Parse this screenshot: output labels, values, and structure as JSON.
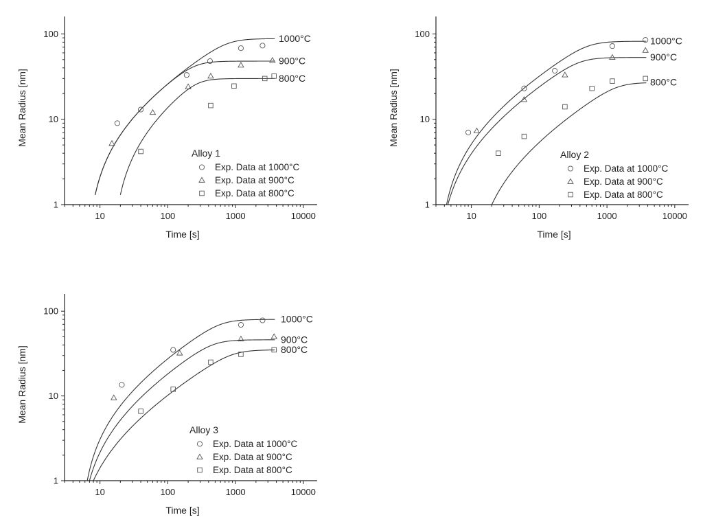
{
  "chart_data": [
    {
      "type": "line",
      "title": "",
      "xlabel": "Time [s]",
      "ylabel": "Mean Radius [nm]",
      "xscale": "log",
      "yscale": "log",
      "xlim": [
        3,
        16000
      ],
      "ylim": [
        1,
        160
      ],
      "xticks": [
        10,
        100,
        1000,
        10000
      ],
      "xtick_labels": [
        "10",
        "100",
        "1000",
        "10000"
      ],
      "yticks": [
        1,
        10,
        100
      ],
      "ytick_labels": [
        "1",
        "10",
        "100"
      ],
      "legend": {
        "title": "Alloy 1",
        "entries": [
          {
            "marker": "circle",
            "label": "Exp. Data at 1000°C"
          },
          {
            "marker": "triangle",
            "label": "Exp. Data at 900°C"
          },
          {
            "marker": "square",
            "label": "Exp. Data at 800°C"
          }
        ]
      },
      "series": [
        {
          "name": "1000°C",
          "marker": "circle",
          "curve": {
            "t0": 8.5,
            "t_inflect": 1.3,
            "a": 10,
            "b": 3.2,
            "tsat": 1600,
            "rsat": 88
          },
          "points": [
            [
              18,
              9
            ],
            [
              40,
              13
            ],
            [
              190,
              33
            ],
            [
              420,
              48
            ],
            [
              1200,
              68
            ],
            [
              2500,
              73
            ]
          ]
        },
        {
          "name": "900°C",
          "marker": "triangle",
          "curve": {
            "t0": 8.5,
            "t_inflect": 1.3,
            "a": 10,
            "b": 3.2,
            "tsat": 1600,
            "rsat": 48
          },
          "points": [
            [
              15,
              5.2
            ],
            [
              60,
              12
            ],
            [
              200,
              24
            ],
            [
              430,
              32
            ],
            [
              1200,
              43
            ],
            [
              3500,
              49
            ]
          ]
        },
        {
          "name": "800°C",
          "marker": "square",
          "curve": {
            "t0": 20,
            "t_inflect": 1.3,
            "a": 10,
            "b": 3.2,
            "tsat": 1600,
            "rsat": 30
          },
          "points": [
            [
              40,
              4.2
            ],
            [
              430,
              14.5
            ],
            [
              950,
              24.5
            ],
            [
              2700,
              30
            ],
            [
              3700,
              32
            ]
          ]
        }
      ]
    },
    {
      "type": "line",
      "title": "",
      "xlabel": "Time [s]",
      "ylabel": "Mean Radius [nm]",
      "xscale": "log",
      "yscale": "log",
      "xlim": [
        3,
        16000
      ],
      "ylim": [
        1,
        160
      ],
      "xticks": [
        10,
        100,
        1000,
        10000
      ],
      "xtick_labels": [
        "10",
        "100",
        "1000",
        "10000"
      ],
      "yticks": [
        1,
        10,
        100
      ],
      "ytick_labels": [
        "1",
        "10",
        "100"
      ],
      "legend": {
        "title": "Alloy 2",
        "entries": [
          {
            "marker": "circle",
            "label": "Exp. Data at 1000°C"
          },
          {
            "marker": "triangle",
            "label": "Exp. Data at 900°C"
          },
          {
            "marker": "square",
            "label": "Exp. Data at 800°C"
          }
        ]
      },
      "series": [
        {
          "name": "1000°C",
          "marker": "circle",
          "curve": {
            "t0": 4.3,
            "t_inflect": 1.0,
            "a": 8,
            "b": 3.2,
            "tsat": 900,
            "rsat": 82
          },
          "points": [
            [
              9,
              7
            ],
            [
              60,
              23
            ],
            [
              170,
              37
            ],
            [
              1200,
              72
            ],
            [
              3700,
              85
            ]
          ]
        },
        {
          "name": "900°C",
          "marker": "triangle",
          "curve": {
            "t0": 4.5,
            "t_inflect": 1.0,
            "a": 6,
            "b": 3.2,
            "tsat": 900,
            "rsat": 53
          },
          "points": [
            [
              12,
              7.3
            ],
            [
              60,
              17
            ],
            [
              240,
              33
            ],
            [
              1200,
              53
            ],
            [
              3700,
              64
            ]
          ]
        },
        {
          "name": "800°C",
          "marker": "square",
          "curve": {
            "t0": 20,
            "t_inflect": 1.0,
            "a": 3.2,
            "b": 3.2,
            "tsat": 900,
            "rsat": 27
          },
          "points": [
            [
              25,
              4
            ],
            [
              60,
              6.3
            ],
            [
              240,
              14
            ],
            [
              600,
              23
            ],
            [
              1200,
              28
            ],
            [
              3700,
              30
            ]
          ]
        }
      ]
    },
    {
      "type": "line",
      "title": "",
      "xlabel": "Time [s]",
      "ylabel": "Mean Radius [nm]",
      "xscale": "log",
      "yscale": "log",
      "xlim": [
        3,
        16000
      ],
      "ylim": [
        1,
        160
      ],
      "xticks": [
        10,
        100,
        1000,
        10000
      ],
      "xtick_labels": [
        "10",
        "100",
        "1000",
        "10000"
      ],
      "yticks": [
        1,
        10,
        100
      ],
      "ytick_labels": [
        "1",
        "10",
        "100"
      ],
      "legend": {
        "title": "Alloy 3",
        "entries": [
          {
            "marker": "circle",
            "label": "Exp. Data at 1000°C"
          },
          {
            "marker": "triangle",
            "label": "Exp. Data at 900°C"
          },
          {
            "marker": "square",
            "label": "Exp. Data at 800°C"
          }
        ]
      },
      "series": [
        {
          "name": "1000°C",
          "marker": "circle",
          "curve": {
            "t0": 6.5,
            "t_inflect": 1.0,
            "a": 9,
            "b": 3.2,
            "tsat": 900,
            "rsat": 80
          },
          "points": [
            [
              21,
              13.5
            ],
            [
              120,
              35
            ],
            [
              1200,
              69
            ],
            [
              2500,
              78
            ]
          ]
        },
        {
          "name": "900°C",
          "marker": "triangle",
          "curve": {
            "t0": 7.0,
            "t_inflect": 1.0,
            "a": 6,
            "b": 3.2,
            "tsat": 900,
            "rsat": 46
          },
          "points": [
            [
              16,
              9.5
            ],
            [
              150,
              32
            ],
            [
              1200,
              47
            ],
            [
              3700,
              50
            ]
          ]
        },
        {
          "name": "800°C",
          "marker": "square",
          "curve": {
            "t0": 8.0,
            "t_inflect": 1.0,
            "a": 3.3,
            "b": 3.2,
            "tsat": 900,
            "rsat": 35
          },
          "points": [
            [
              40,
              6.6
            ],
            [
              120,
              12
            ],
            [
              430,
              25
            ],
            [
              1200,
              31
            ],
            [
              3700,
              35
            ]
          ]
        }
      ]
    }
  ]
}
